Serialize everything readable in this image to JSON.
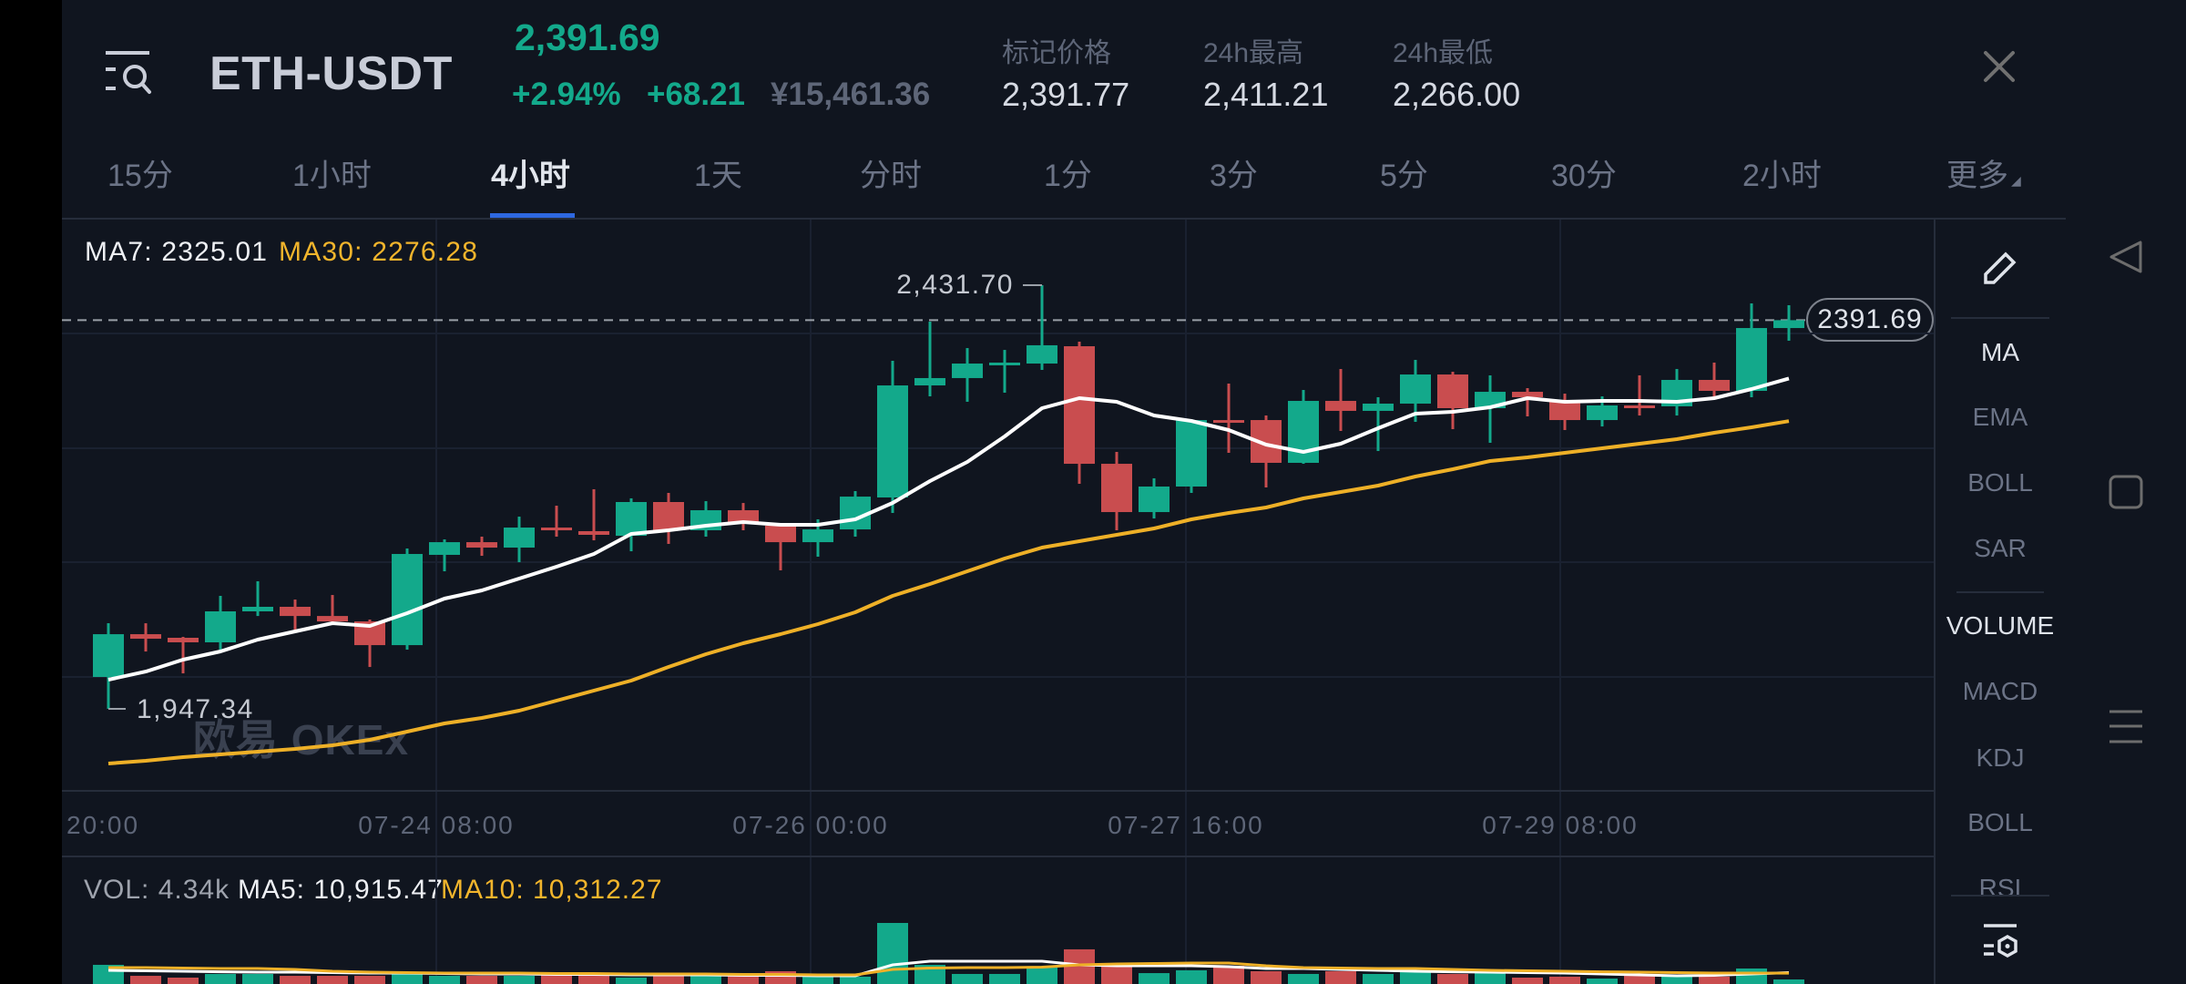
{
  "header": {
    "pair": "ETH-USDT",
    "last_price": "2,391.69",
    "change_pct": "+2.94%",
    "change_abs": "+68.21",
    "cny_price": "¥15,461.36",
    "stats": [
      {
        "label": "标记价格",
        "value": "2,391.77"
      },
      {
        "label": "24h最高",
        "value": "2,411.21"
      },
      {
        "label": "24h最低",
        "value": "2,266.00"
      }
    ],
    "icons": {
      "menu": "menu-search-icon",
      "close": "close-icon"
    }
  },
  "tabs": [
    {
      "label": "15分",
      "active": false
    },
    {
      "label": "1小时",
      "active": false
    },
    {
      "label": "4小时",
      "active": true
    },
    {
      "label": "1天",
      "active": false
    },
    {
      "label": "分时",
      "active": false
    },
    {
      "label": "1分",
      "active": false
    },
    {
      "label": "3分",
      "active": false
    },
    {
      "label": "5分",
      "active": false
    },
    {
      "label": "30分",
      "active": false
    },
    {
      "label": "2小时",
      "active": false
    },
    {
      "label": "更多",
      "active": false
    }
  ],
  "more_indicator": "◢",
  "chart": {
    "legend": {
      "ma7": "MA7: 2325.01",
      "ma30": "MA30: 2276.28"
    },
    "high_label": "2,431.70",
    "low_label": "1,947.34",
    "current_price_tag": "2391.69",
    "watermark": "欧易 OKEx"
  },
  "volume": {
    "legend": {
      "vol": "VOL: 4.34k",
      "ma5": "MA5: 10,915.47",
      "ma10": "MA10: 10,312.27"
    }
  },
  "indicators": {
    "main": [
      {
        "label": "MA",
        "active": true
      },
      {
        "label": "EMA",
        "active": false
      },
      {
        "label": "BOLL",
        "active": false
      },
      {
        "label": "SAR",
        "active": false
      }
    ],
    "sub": [
      {
        "label": "VOLUME",
        "active": true
      },
      {
        "label": "MACD",
        "active": false
      },
      {
        "label": "KDJ",
        "active": false
      },
      {
        "label": "BOLL",
        "active": false
      },
      {
        "label": "RSI",
        "active": false
      }
    ],
    "icons": {
      "draw": "pencil-icon",
      "settings": "indicator-settings-icon"
    }
  },
  "system_nav": {
    "icons": [
      "back-icon",
      "home-icon",
      "menu-icon"
    ]
  },
  "colors": {
    "up": "#13a98b",
    "down": "#c94d4f",
    "ma7": "#ffffff",
    "ma30": "#eeb027",
    "accent_tab": "#2e68e0",
    "background": "#10151f"
  },
  "chart_data": {
    "type": "candlestick",
    "title": "ETH-USDT 4小时",
    "interval": "4h",
    "x_ticks": [
      "20:00",
      "07-24 08:00",
      "07-26 00:00",
      "07-27 16:00",
      "07-29 08:00"
    ],
    "price_ylim": [
      1853.6,
      2506.7
    ],
    "volume_ylim": [
      0,
      121800
    ],
    "current_price": 2391.69,
    "visible_high": 2431.7,
    "visible_high_index": 25,
    "visible_low": 1947.34,
    "visible_low_index": 0,
    "grid": true,
    "candles_ohlc": [
      [
        1983.8,
        2045.2,
        1947.34,
        2032.7
      ],
      [
        2032.7,
        2045.2,
        2012.9,
        2027.5
      ],
      [
        2028.6,
        2029.6,
        1987.9,
        2023.4
      ],
      [
        2023.4,
        2076.5,
        2015.0,
        2058.8
      ],
      [
        2058.8,
        2093.2,
        2053.5,
        2064.0
      ],
      [
        2064.0,
        2072.3,
        2037.9,
        2053.5
      ],
      [
        2053.5,
        2077.5,
        2046.3,
        2047.3
      ],
      [
        2047.3,
        2049.4,
        1995.2,
        2020.2
      ],
      [
        2020.2,
        2130.7,
        2015.0,
        2124.4
      ],
      [
        2123.4,
        2141.1,
        2104.6,
        2137.9
      ],
      [
        2137.9,
        2144.2,
        2122.3,
        2131.7
      ],
      [
        2131.7,
        2167.1,
        2115.0,
        2154.6
      ],
      [
        2154.6,
        2179.6,
        2144.2,
        2151.5
      ],
      [
        2150.5,
        2198.4,
        2140.0,
        2146.3
      ],
      [
        2145.2,
        2188.0,
        2127.5,
        2183.8
      ],
      [
        2183.8,
        2194.2,
        2135.9,
        2151.5
      ],
      [
        2151.5,
        2184.8,
        2144.2,
        2174.4
      ],
      [
        2174.4,
        2182.7,
        2151.5,
        2160.9
      ],
      [
        2156.7,
        2156.7,
        2105.7,
        2137.9
      ],
      [
        2137.9,
        2164.0,
        2121.3,
        2152.5
      ],
      [
        2152.5,
        2196.3,
        2144.2,
        2190.0
      ],
      [
        2189.0,
        2345.2,
        2171.3,
        2317.1
      ],
      [
        2317.1,
        2390.0,
        2304.6,
        2325.5
      ],
      [
        2325.5,
        2359.8,
        2298.4,
        2342.1
      ],
      [
        2342.1,
        2357.7,
        2308.8,
        2343.2
      ],
      [
        2342.1,
        2431.7,
        2334.8,
        2363.0
      ],
      [
        2361.9,
        2367.1,
        2204.6,
        2227.5
      ],
      [
        2227.5,
        2241.1,
        2151.5,
        2172.3
      ],
      [
        2172.3,
        2210.9,
        2165.0,
        2201.5
      ],
      [
        2201.5,
        2278.6,
        2194.2,
        2277.5
      ],
      [
        2277.5,
        2319.2,
        2240.0,
        2276.5
      ],
      [
        2277.5,
        2282.7,
        2200.5,
        2228.6
      ],
      [
        2228.6,
        2311.9,
        2227.5,
        2299.4
      ],
      [
        2299.4,
        2335.9,
        2265.0,
        2288.0
      ],
      [
        2288.0,
        2303.6,
        2242.1,
        2296.3
      ],
      [
        2296.3,
        2346.3,
        2275.5,
        2329.6
      ],
      [
        2329.6,
        2332.7,
        2267.1,
        2291.1
      ],
      [
        2291.1,
        2328.6,
        2251.5,
        2309.8
      ],
      [
        2309.8,
        2314.0,
        2281.7,
        2303.6
      ],
      [
        2299.4,
        2307.7,
        2266.1,
        2277.5
      ],
      [
        2277.5,
        2304.6,
        2270.2,
        2294.2
      ],
      [
        2294.2,
        2328.6,
        2282.7,
        2293.2
      ],
      [
        2293.2,
        2335.9,
        2282.7,
        2323.4
      ],
      [
        2323.4,
        2343.2,
        2302.5,
        2310.9
      ],
      [
        2310.9,
        2410.9,
        2303.6,
        2382.7
      ],
      [
        2382.7,
        2408.8,
        2368.2,
        2391.69
      ]
    ],
    "series": [
      {
        "name": "MA7",
        "color": "#ffffff",
        "values": [
          1980.7,
          1990.0,
          2003.6,
          2013.0,
          2026.5,
          2035.9,
          2045.3,
          2042.1,
          2056.7,
          2073.4,
          2082.8,
          2096.3,
          2109.8,
          2124.4,
          2147.3,
          2151.5,
          2156.7,
          2160.9,
          2157.8,
          2157.8,
          2164.0,
          2182.8,
          2207.8,
          2229.6,
          2258.8,
          2291.1,
          2302.5,
          2298.4,
          2282.7,
          2276.5,
          2266.1,
          2249.4,
          2241.1,
          2250.5,
          2268.2,
          2284.8,
          2286.9,
          2292.1,
          2302.5,
          2298.4,
          2299.4,
          2299.4,
          2298.4,
          2302.5,
          2313.0,
          2325.01
        ]
      },
      {
        "name": "MA30",
        "color": "#eeb027",
        "values": [
          1884.8,
          1888.0,
          1892.1,
          1895.3,
          1898.4,
          1901.5,
          1905.7,
          1911.9,
          1921.3,
          1930.7,
          1936.9,
          1945.3,
          1956.7,
          1968.2,
          1979.6,
          1995.3,
          2009.8,
          2022.3,
          2032.8,
          2044.2,
          2057.8,
          2076.5,
          2090.0,
          2104.6,
          2119.2,
          2131.7,
          2139.0,
          2146.3,
          2153.6,
          2164.0,
          2171.3,
          2177.5,
          2188.0,
          2195.3,
          2202.5,
          2213.0,
          2221.3,
          2230.7,
          2234.8,
          2240.0,
          2245.2,
          2250.5,
          2255.7,
          2263.0,
          2269.2,
          2276.28
        ]
      }
    ],
    "volume": [
      18300,
      7800,
      6100,
      9600,
      9600,
      7800,
      7800,
      7800,
      9600,
      7800,
      7800,
      7800,
      9600,
      10400,
      6100,
      7800,
      7800,
      7800,
      12200,
      7000,
      7000,
      58300,
      18300,
      9600,
      9600,
      15700,
      33100,
      17400,
      10400,
      13100,
      17400,
      12200,
      9600,
      12200,
      9600,
      11300,
      9600,
      13900,
      6100,
      7000,
      5200,
      7800,
      7000,
      7000,
      14800,
      4340
    ],
    "volume_series": [
      {
        "name": "MA5",
        "color": "#ffffff",
        "values": [
          13050,
          12600,
          12200,
          11700,
          11300,
          11300,
          10900,
          10400,
          10400,
          10000,
          9600,
          9600,
          9100,
          9100,
          8700,
          8700,
          8700,
          8300,
          8300,
          7800,
          7800,
          18300,
          21750,
          21750,
          21750,
          21750,
          18300,
          17400,
          17400,
          17400,
          16500,
          14800,
          14800,
          13900,
          13050,
          12200,
          11700,
          11300,
          10900,
          10400,
          9600,
          8700,
          7800,
          8300,
          9600,
          10915.47
        ]
      },
      {
        "name": "MA10",
        "color": "#eeb027",
        "values": [
          15660,
          15660,
          15200,
          14800,
          14800,
          13900,
          12200,
          11300,
          10900,
          10400,
          10400,
          10400,
          10000,
          10000,
          9600,
          9600,
          9600,
          9100,
          9100,
          8700,
          8700,
          13900,
          15200,
          15660,
          15660,
          16100,
          18300,
          19100,
          19600,
          20000,
          20000,
          17400,
          15660,
          15200,
          14800,
          14800,
          13900,
          13050,
          12600,
          12200,
          11700,
          11300,
          10900,
          10400,
          10400,
          10312.27
        ]
      }
    ]
  }
}
